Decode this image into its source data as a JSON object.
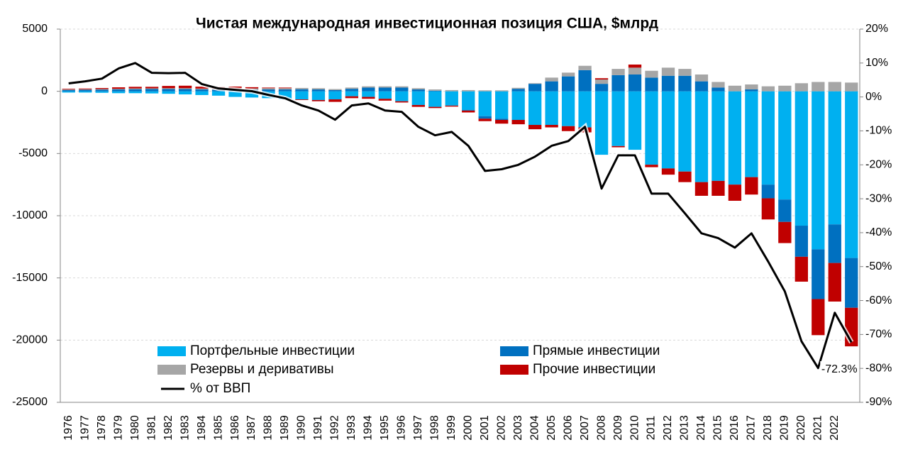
{
  "chart_data": {
    "type": "bar-line",
    "title": "Чистая международная инвестиционная позиция США, $млрд",
    "categories": [
      "1976",
      "1977",
      "1978",
      "1979",
      "1980",
      "1981",
      "1982",
      "1983",
      "1984",
      "1985",
      "1986",
      "1987",
      "1988",
      "1989",
      "1990",
      "1991",
      "1992",
      "1993",
      "1994",
      "1995",
      "1996",
      "1997",
      "1998",
      "1999",
      "2000",
      "2001",
      "2002",
      "2003",
      "2004",
      "2005",
      "2006",
      "2007",
      "2008",
      "2009",
      "2010",
      "2011",
      "2012",
      "2013",
      "2014",
      "2015",
      "2016",
      "2017",
      "2018",
      "2019",
      "2020",
      "2021",
      "2022",
      null
    ],
    "series": [
      {
        "name": "Портфельные инвестиции",
        "color": "#00b0f0",
        "values": [
          -100,
          -100,
          -120,
          -150,
          -150,
          -170,
          -200,
          -250,
          -300,
          -350,
          -450,
          -500,
          -550,
          -650,
          -650,
          -700,
          -650,
          -400,
          -450,
          -600,
          -800,
          -1100,
          -1250,
          -1150,
          -1500,
          -2000,
          -2200,
          -2300,
          -2700,
          -2700,
          -2800,
          -2900,
          -5100,
          -4400,
          -4700,
          -5900,
          -6200,
          -6450,
          -7300,
          -7200,
          -7500,
          -6900,
          -7500,
          -8700,
          -10800,
          -12700,
          -10700,
          -13400
        ]
      },
      {
        "name": "Прямые инвестиции",
        "color": "#0070c0",
        "values": [
          100,
          120,
          130,
          150,
          170,
          180,
          180,
          180,
          150,
          120,
          130,
          130,
          150,
          150,
          170,
          150,
          100,
          200,
          300,
          300,
          300,
          150,
          50,
          0,
          -50,
          -200,
          -100,
          200,
          600,
          800,
          1200,
          1700,
          600,
          1300,
          1350,
          1100,
          1250,
          1250,
          800,
          300,
          0,
          150,
          -1100,
          -1800,
          -2500,
          -4000,
          -3100,
          -4000
        ]
      },
      {
        "name": "Резервы и деривативы",
        "color": "#a6a6a6",
        "values": [
          50,
          40,
          50,
          50,
          60,
          60,
          70,
          70,
          70,
          80,
          100,
          100,
          100,
          100,
          100,
          100,
          80,
          100,
          100,
          100,
          100,
          100,
          100,
          100,
          100,
          80,
          80,
          80,
          50,
          300,
          300,
          350,
          350,
          500,
          550,
          550,
          650,
          550,
          550,
          450,
          450,
          400,
          400,
          450,
          650,
          750,
          750,
          700
        ]
      },
      {
        "name": "Прочие инвестиции",
        "color": "#c00000",
        "values": [
          50,
          60,
          80,
          120,
          130,
          120,
          180,
          200,
          150,
          150,
          150,
          100,
          50,
          50,
          -50,
          -100,
          -200,
          -150,
          -150,
          -150,
          -100,
          -150,
          -100,
          -80,
          -150,
          -200,
          -300,
          -350,
          -350,
          -200,
          -400,
          -400,
          100,
          -100,
          250,
          -200,
          -500,
          -850,
          -1100,
          -1200,
          -1300,
          -1400,
          -1700,
          -1700,
          -2000,
          -2900,
          -3100,
          -3100
        ]
      },
      {
        "name": "% от ВВП",
        "color": "#000000",
        "axis": "y2",
        "values": [
          4,
          4.6,
          5.4,
          8.4,
          10,
          7.1,
          7,
          7.1,
          3.8,
          2.5,
          2.1,
          1.7,
          0.6,
          -0.4,
          -2.5,
          -4,
          -6.7,
          -2.5,
          -1.9,
          -4,
          -4.4,
          -8.8,
          -11.3,
          -10.3,
          -14.4,
          -21.8,
          -21.3,
          -20,
          -17.6,
          -14.4,
          -13,
          -8.8,
          -27,
          -17.2,
          -17.2,
          -28.5,
          -28.5,
          -34.3,
          -40.2,
          -41.6,
          -44.4,
          -40.2,
          -48.5,
          -57.3,
          -72,
          -79.9,
          -63.6,
          -72.3
        ]
      }
    ],
    "annotation": "-72.3%",
    "ylim": [
      -25000,
      5000
    ],
    "yticks": [
      -25000,
      -20000,
      -15000,
      -10000,
      -5000,
      0,
      5000
    ],
    "y2lim": [
      -90,
      20
    ],
    "y2ticks": [
      {
        "value": -90,
        "label": "-90%"
      },
      {
        "value": -80,
        "label": "-80%"
      },
      {
        "value": -70,
        "label": "-70%"
      },
      {
        "value": -60,
        "label": "-60%"
      },
      {
        "value": -50,
        "label": "-50%"
      },
      {
        "value": -40,
        "label": "-40%"
      },
      {
        "value": -30,
        "label": "-30%"
      },
      {
        "value": -20,
        "label": "-20%"
      },
      {
        "value": -10,
        "label": "-10%"
      },
      {
        "value": 0,
        "label": "0%"
      },
      {
        "value": 10,
        "label": "10%"
      },
      {
        "value": 20,
        "label": "20%"
      }
    ],
    "grid": true
  }
}
